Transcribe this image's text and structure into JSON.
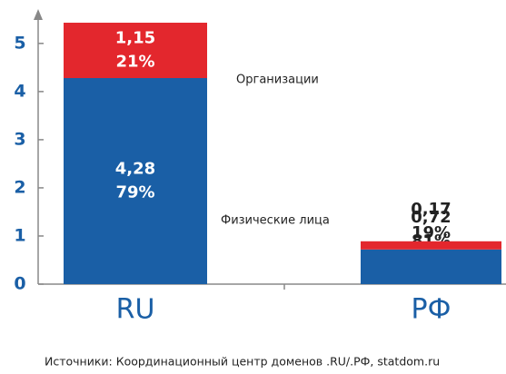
{
  "chart_data": {
    "type": "stacked_bar",
    "categories": [
      "RU",
      "РФ"
    ],
    "series": [
      {
        "name": "Физические лица",
        "color": "#1a5fa6",
        "values": [
          4.28,
          0.72
        ],
        "value_labels": [
          "4,28",
          "0,72"
        ],
        "shares": [
          79,
          81
        ],
        "share_labels": [
          "79%",
          "81%"
        ]
      },
      {
        "name": "Организации",
        "color": "#e3272d",
        "values": [
          1.15,
          0.17
        ],
        "value_labels": [
          "1,15",
          "0,17"
        ],
        "shares": [
          21,
          19
        ],
        "share_labels": [
          "21%",
          "19%"
        ]
      }
    ],
    "ylim": [
      0,
      5.6
    ],
    "yticks": [
      0,
      1,
      2,
      3,
      4,
      5
    ],
    "note": "Источники: Координационный центр доменов .RU/.РФ, statdom.ru"
  }
}
